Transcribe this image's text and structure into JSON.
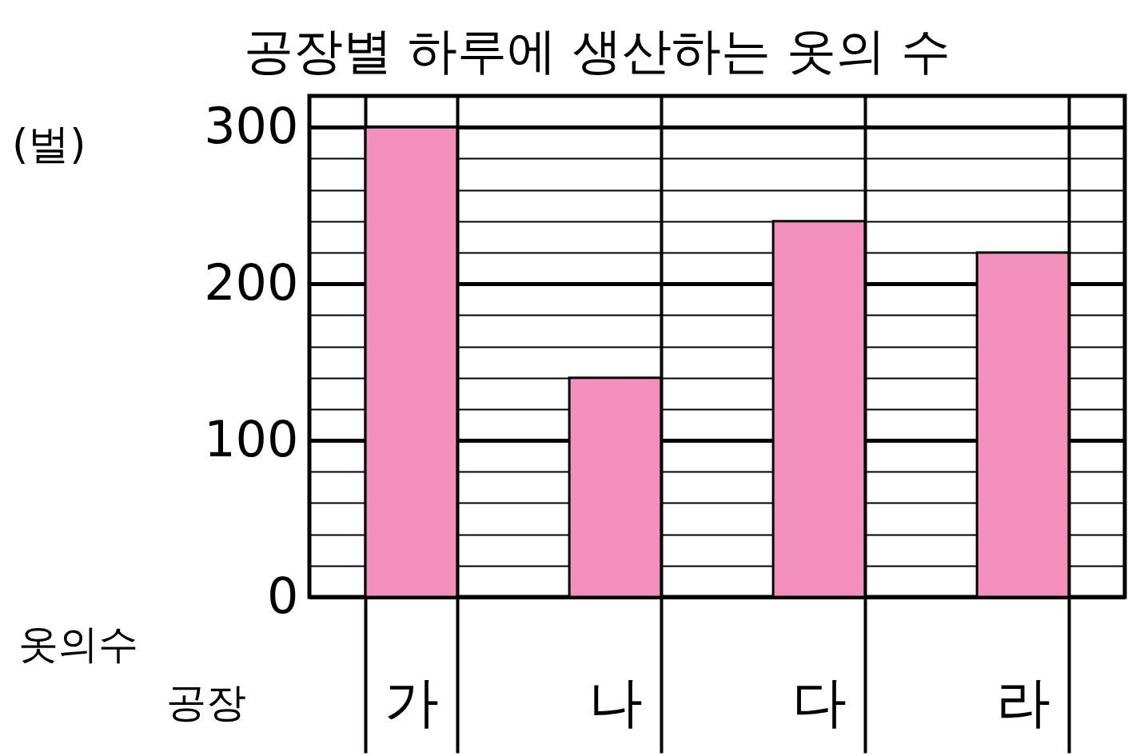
{
  "chart_data": {
    "type": "bar",
    "title": "공장별 하루에 생산하는 옷의 수",
    "xlabel": "공장",
    "ylabel": "옷의수",
    "annotations": [
      "(벌)"
    ],
    "categories": [
      "가",
      "나",
      "다",
      "라"
    ],
    "values": [
      300,
      140,
      240,
      220
    ],
    "color": "#f28fbb",
    "ylim": [
      0,
      320
    ],
    "yticks": [
      0,
      {
        "value": 20,
        "label": null
      },
      {
        "value": 40,
        "label": null
      },
      {
        "value": 60,
        "label": null
      },
      {
        "value": 80,
        "label": null
      },
      100,
      {
        "value": 120,
        "label": null
      },
      {
        "value": 140,
        "label": null
      },
      {
        "value": 160,
        "label": null
      },
      {
        "value": 180,
        "label": null
      },
      200,
      {
        "value": 220,
        "label": null
      },
      {
        "value": 240,
        "label": null
      },
      {
        "value": 260,
        "label": null
      },
      {
        "value": 280,
        "label": null
      },
      300
    ],
    "grid": true
  }
}
